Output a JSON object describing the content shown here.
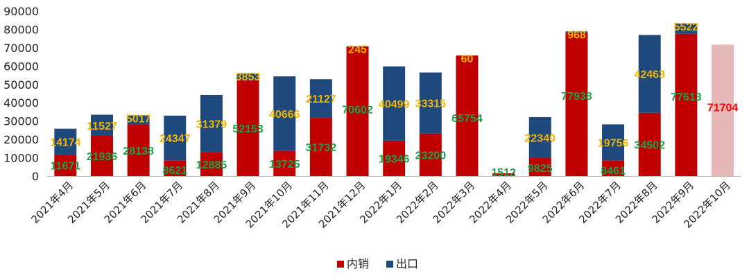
{
  "chart_data": {
    "type": "bar",
    "stacked": true,
    "categories": [
      "2021年4月",
      "2021年5月",
      "2021年6月",
      "2021年7月",
      "2021年8月",
      "2021年9月",
      "2021年10月",
      "2021年11月",
      "2021年12月",
      "2022年1月",
      "2022年2月",
      "2022年3月",
      "2022年4月",
      "2022年5月",
      "2022年6月",
      "2022年7月",
      "2022年8月",
      "2022年9月",
      "2022年10月"
    ],
    "series": [
      {
        "name": "内销",
        "color": "#c00000",
        "label_color": "#1aa04a",
        "values": [
          11671,
          21936,
          28138,
          8621,
          12885,
          52153,
          13725,
          31732,
          70602,
          19346,
          23200,
          65754,
          1512,
          9825,
          77938,
          8461,
          34502,
          77613,
          71704
        ],
        "labels": [
          "11671",
          "21936",
          "28138",
          "8621",
          "12885",
          "52153",
          "13725",
          "31732",
          "70602",
          "19346",
          "23200",
          "65754",
          "1512",
          "9825",
          "77938",
          "8461",
          "34502",
          "77613",
          "71704"
        ]
      },
      {
        "name": "出口",
        "color": "#1f497d",
        "label_color": "#f0b400",
        "values": [
          14174,
          11527,
          5017,
          24347,
          31379,
          3853,
          40666,
          21127,
          245,
          40499,
          33315,
          60,
          0,
          22340,
          968,
          19756,
          42463,
          5522,
          0
        ],
        "labels": [
          "14174",
          "11527",
          "5017",
          "24347",
          "31379",
          "3853",
          "40666",
          "21127",
          "245",
          "40499",
          "33315",
          "60",
          "",
          "22340",
          "968",
          "19756",
          "42463",
          "5522",
          ""
        ]
      }
    ],
    "highlight": {
      "index": 18,
      "bar_color": "#e6b8b7",
      "label_color": "#ff0000"
    },
    "ylim": [
      0,
      90000
    ],
    "yticks": [
      "0",
      "10000",
      "20000",
      "30000",
      "40000",
      "50000",
      "60000",
      "70000",
      "80000",
      "90000"
    ],
    "legend_position": "bottom",
    "grid": false,
    "title": "",
    "xlabel": "",
    "ylabel": ""
  }
}
